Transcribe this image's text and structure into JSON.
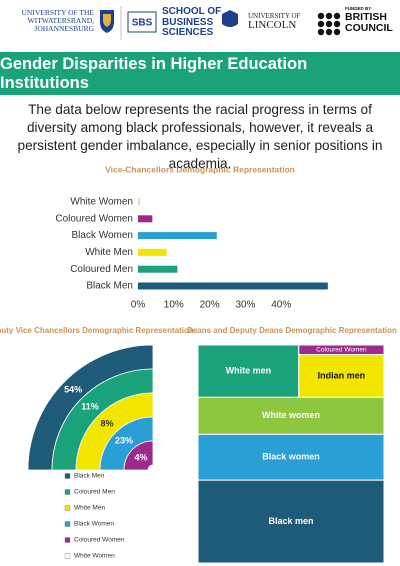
{
  "header": {
    "wits": [
      "UNIVERSITY OF THE",
      "WITWATERSRAND,",
      "JOHANNESBURG"
    ],
    "sbs": {
      "mark": "SBS",
      "lines": [
        "SCHOOL OF",
        "BUSINESS",
        "SCIENCES"
      ]
    },
    "lincoln": [
      "UNIVERSITY OF",
      "LINCOLN"
    ],
    "british_council": {
      "funded": "FUNDED BY",
      "lines": [
        "BRITISH",
        "COUNCIL"
      ]
    }
  },
  "title": "Gender Disparities in Higher Education Institutions",
  "intro": "The data below represents the racial progress in terms of diversity among black professionals, however, it reveals a persistent gender imbalance, especially in senior positions in academia.",
  "chart_data": [
    {
      "type": "hbar",
      "title": "Vice-Chancellors Demographic Representation",
      "categories": [
        "White Women",
        "Coloured Women",
        "Black Women",
        "White Men",
        "Coloured Men",
        "Black Men"
      ],
      "values": [
        0.5,
        4,
        22,
        8,
        11,
        53
      ],
      "colors": [
        "#c9e3a6",
        "#9b2a8c",
        "#2a9fd6",
        "#f2e600",
        "#1aa37a",
        "#1e5b78"
      ],
      "xlim": [
        0,
        55
      ],
      "xticks": [
        {
          "value": 0,
          "label": "0%"
        },
        {
          "value": 10,
          "label": "10%"
        },
        {
          "value": 20,
          "label": "20%"
        },
        {
          "value": 30,
          "label": "30%"
        },
        {
          "value": 40,
          "label": "40%"
        }
      ]
    },
    {
      "type": "radial",
      "title": "Deputy Vice Chancellors Demographic Representation",
      "categories": [
        "Black Men",
        "Coloured Men",
        "White Men",
        "Black Women",
        "Coloured Women",
        "White Women"
      ],
      "values": [
        54,
        11,
        8,
        23,
        4,
        null
      ],
      "value_labels": [
        "54%",
        "11%",
        "8%",
        "23%",
        "4%",
        null
      ],
      "colors": [
        "#1e5b78",
        "#1aa37a",
        "#f2e600",
        "#2a9fd6",
        "#9b2a8c",
        "#ffffff"
      ]
    },
    {
      "type": "treemap",
      "title": "Deans and Deputy Deans Demographic Representation",
      "categories": [
        "White men",
        "Coloured Women",
        "Indian men",
        "White women",
        "Black women",
        "Black men"
      ],
      "values": [
        13,
        2,
        9,
        17,
        21,
        38
      ],
      "colors": [
        "#1aa37a",
        "#9b2a8c",
        "#f2e600",
        "#8dc63f",
        "#2a9fd6",
        "#1e5b78"
      ]
    }
  ]
}
